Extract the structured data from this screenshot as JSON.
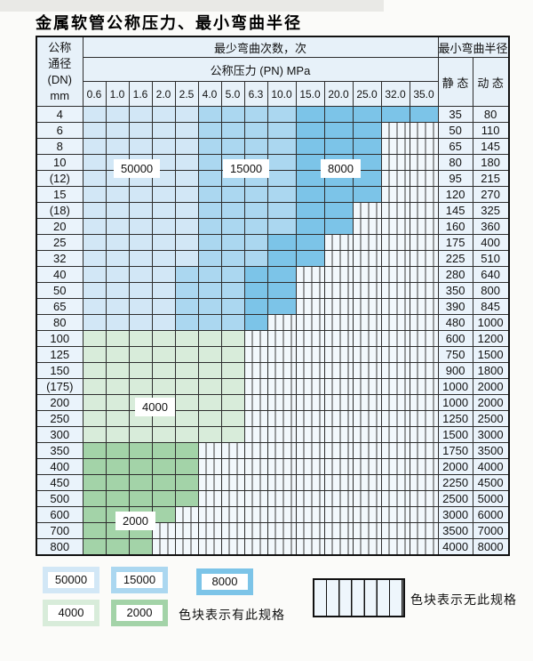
{
  "title": "金属软管公称压力、最小弯曲半径",
  "colors": {
    "c50000": "#d2e7f6",
    "c15000": "#abd7f0",
    "c8000": "#7cc4e8",
    "c4000": "#d8ecda",
    "c2000": "#a3d3a8"
  },
  "table": {
    "corner": {
      "line1": "公称",
      "line2": "通径",
      "line3": "(DN)",
      "line4": "mm"
    },
    "bend_cycles_header": "最少弯曲次数，次",
    "pressure_header": "公称压力 (PN) MPa",
    "radius_header": "最小弯曲半径",
    "static_header": "静 态",
    "dynamic_header": "动 态",
    "pressure_columns": [
      "0.6",
      "1.0",
      "1.6",
      "2.0",
      "2.5",
      "4.0",
      "5.0",
      "6.3",
      "10.0",
      "15.0",
      "20.0",
      "25.0",
      "32.0",
      "35.0"
    ],
    "rows": [
      {
        "dn": "4",
        "zones": [
          [
            "c50000",
            5
          ],
          [
            "c15000",
            4
          ],
          [
            "c8000",
            5
          ]
        ],
        "static": "35",
        "dynamic": "80"
      },
      {
        "dn": "6",
        "zones": [
          [
            "c50000",
            5
          ],
          [
            "c15000",
            4
          ],
          [
            "c8000",
            3
          ]
        ],
        "static": "50",
        "dynamic": "110"
      },
      {
        "dn": "8",
        "zones": [
          [
            "c50000",
            5
          ],
          [
            "c15000",
            4
          ],
          [
            "c8000",
            3
          ]
        ],
        "static": "65",
        "dynamic": "145"
      },
      {
        "dn": "10",
        "zones": [
          [
            "c50000",
            5
          ],
          [
            "c15000",
            4
          ],
          [
            "c8000",
            3
          ]
        ],
        "static": "80",
        "dynamic": "180"
      },
      {
        "dn": "(12)",
        "zones": [
          [
            "c50000",
            5
          ],
          [
            "c15000",
            4
          ],
          [
            "c8000",
            3
          ]
        ],
        "static": "95",
        "dynamic": "215"
      },
      {
        "dn": "15",
        "zones": [
          [
            "c50000",
            5
          ],
          [
            "c15000",
            4
          ],
          [
            "c8000",
            3
          ]
        ],
        "static": "120",
        "dynamic": "270"
      },
      {
        "dn": "(18)",
        "zones": [
          [
            "c50000",
            5
          ],
          [
            "c15000",
            4
          ],
          [
            "c8000",
            2
          ]
        ],
        "static": "145",
        "dynamic": "325"
      },
      {
        "dn": "20",
        "zones": [
          [
            "c50000",
            5
          ],
          [
            "c15000",
            4
          ],
          [
            "c8000",
            2
          ]
        ],
        "static": "160",
        "dynamic": "360"
      },
      {
        "dn": "25",
        "zones": [
          [
            "c50000",
            5
          ],
          [
            "c15000",
            3
          ],
          [
            "c8000",
            2
          ]
        ],
        "static": "175",
        "dynamic": "400"
      },
      {
        "dn": "32",
        "zones": [
          [
            "c50000",
            5
          ],
          [
            "c15000",
            3
          ],
          [
            "c8000",
            2
          ]
        ],
        "static": "225",
        "dynamic": "510"
      },
      {
        "dn": "40",
        "zones": [
          [
            "c50000",
            4
          ],
          [
            "c15000",
            3
          ],
          [
            "c8000",
            2
          ]
        ],
        "static": "280",
        "dynamic": "640"
      },
      {
        "dn": "50",
        "zones": [
          [
            "c50000",
            4
          ],
          [
            "c15000",
            3
          ],
          [
            "c8000",
            2
          ]
        ],
        "static": "350",
        "dynamic": "800"
      },
      {
        "dn": "65",
        "zones": [
          [
            "c50000",
            4
          ],
          [
            "c15000",
            3
          ],
          [
            "c8000",
            2
          ]
        ],
        "static": "390",
        "dynamic": "845"
      },
      {
        "dn": "80",
        "zones": [
          [
            "c50000",
            4
          ],
          [
            "c15000",
            3
          ],
          [
            "c8000",
            1
          ]
        ],
        "static": "480",
        "dynamic": "1000"
      },
      {
        "dn": "100",
        "zones": [
          [
            "c4000",
            7
          ]
        ],
        "static": "600",
        "dynamic": "1200"
      },
      {
        "dn": "125",
        "zones": [
          [
            "c4000",
            7
          ]
        ],
        "static": "750",
        "dynamic": "1500"
      },
      {
        "dn": "150",
        "zones": [
          [
            "c4000",
            7
          ]
        ],
        "static": "900",
        "dynamic": "1800"
      },
      {
        "dn": "(175)",
        "zones": [
          [
            "c4000",
            7
          ]
        ],
        "static": "1000",
        "dynamic": "2000"
      },
      {
        "dn": "200",
        "zones": [
          [
            "c4000",
            7
          ]
        ],
        "static": "1000",
        "dynamic": "2000"
      },
      {
        "dn": "250",
        "zones": [
          [
            "c4000",
            7
          ]
        ],
        "static": "1250",
        "dynamic": "2500"
      },
      {
        "dn": "300",
        "zones": [
          [
            "c4000",
            7
          ]
        ],
        "static": "1500",
        "dynamic": "3000"
      },
      {
        "dn": "350",
        "zones": [
          [
            "c2000",
            5
          ]
        ],
        "static": "1750",
        "dynamic": "3500"
      },
      {
        "dn": "400",
        "zones": [
          [
            "c2000",
            5
          ]
        ],
        "static": "2000",
        "dynamic": "4000"
      },
      {
        "dn": "450",
        "zones": [
          [
            "c2000",
            5
          ]
        ],
        "static": "2250",
        "dynamic": "4500"
      },
      {
        "dn": "500",
        "zones": [
          [
            "c2000",
            5
          ]
        ],
        "static": "2500",
        "dynamic": "5000"
      },
      {
        "dn": "600",
        "zones": [
          [
            "c2000",
            4
          ]
        ],
        "static": "3000",
        "dynamic": "6000"
      },
      {
        "dn": "700",
        "zones": [
          [
            "c2000",
            3
          ]
        ],
        "static": "3500",
        "dynamic": "7000"
      },
      {
        "dn": "800",
        "zones": [
          [
            "c2000",
            3
          ]
        ],
        "static": "4000",
        "dynamic": "8000"
      }
    ]
  },
  "overlays": {
    "o50000": "50000",
    "o15000": "15000",
    "o8000": "8000",
    "o4000": "4000",
    "o2000": "2000"
  },
  "legend": {
    "chip_50000": "50000",
    "chip_15000": "15000",
    "chip_8000": "8000",
    "chip_4000": "4000",
    "chip_2000": "2000",
    "has_spec_text": "色块表示有此规格",
    "no_spec_text": "色块表示无此规格"
  }
}
